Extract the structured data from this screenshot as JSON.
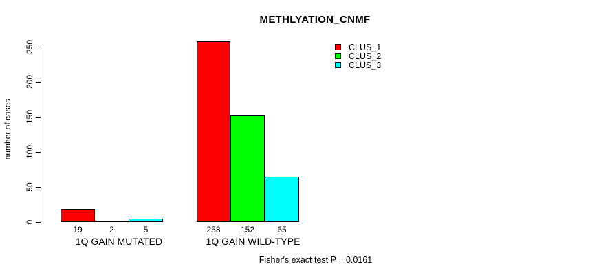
{
  "chart_data": {
    "type": "bar",
    "title": "METHLYATION_CNMF",
    "xlabel": "",
    "ylabel": "number of cases",
    "categories": [
      "1Q GAIN MUTATED",
      "1Q GAIN WILD-TYPE"
    ],
    "series": [
      {
        "name": "CLUS_1",
        "color": "#ff0000",
        "values": [
          19,
          258
        ]
      },
      {
        "name": "CLUS_2",
        "color": "#00ff00",
        "values": [
          2,
          152
        ]
      },
      {
        "name": "CLUS_3",
        "color": "#00ffff",
        "values": [
          5,
          65
        ]
      }
    ],
    "bar_value_labels": [
      19,
      2,
      5,
      258,
      152,
      65
    ],
    "yticks": [
      0,
      50,
      100,
      150,
      200,
      250
    ],
    "ylim": [
      0,
      250
    ],
    "grid": false,
    "legend_position": "top-right",
    "annotation": "Fisher's exact test P = 0.0161"
  }
}
